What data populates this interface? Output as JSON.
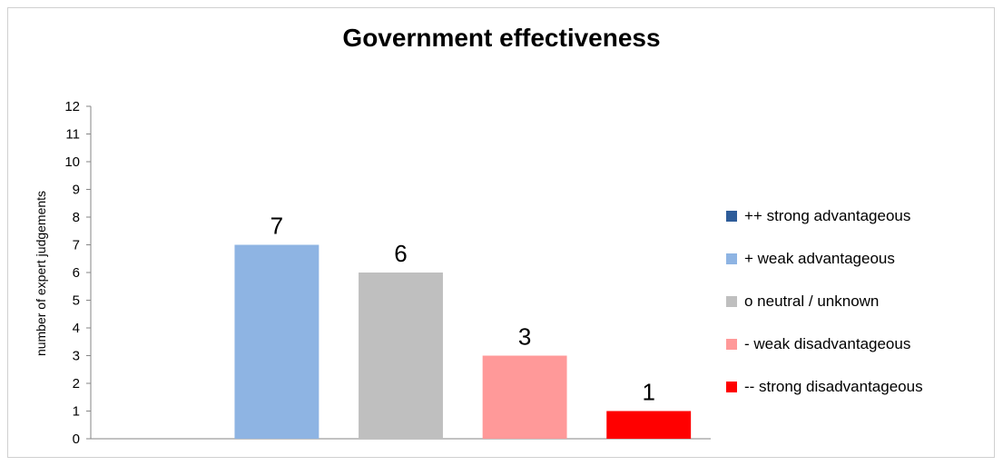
{
  "chart_data": {
    "type": "bar",
    "title": "Government effectiveness",
    "ylabel": "number of expert judgements",
    "xlabel": "",
    "ylim": [
      0,
      12
    ],
    "yticks": [
      0,
      1,
      2,
      3,
      4,
      5,
      6,
      7,
      8,
      9,
      10,
      11,
      12
    ],
    "grid": false,
    "legend_position": "right",
    "series": [
      {
        "name": "++ strong advantageous",
        "value": 0,
        "label": "",
        "color": "#2e5c99"
      },
      {
        "name": "+ weak advantageous",
        "value": 7,
        "label": "7",
        "color": "#8eb4e3"
      },
      {
        "name": "o neutral / unknown",
        "value": 6,
        "label": "6",
        "color": "#bfbfbf"
      },
      {
        "name": "- weak disadvantageous",
        "value": 3,
        "label": "3",
        "color": "#ff9999"
      },
      {
        "name": "-- strong disadvantageous",
        "value": 1,
        "label": "1",
        "color": "#ff0000"
      }
    ]
  }
}
